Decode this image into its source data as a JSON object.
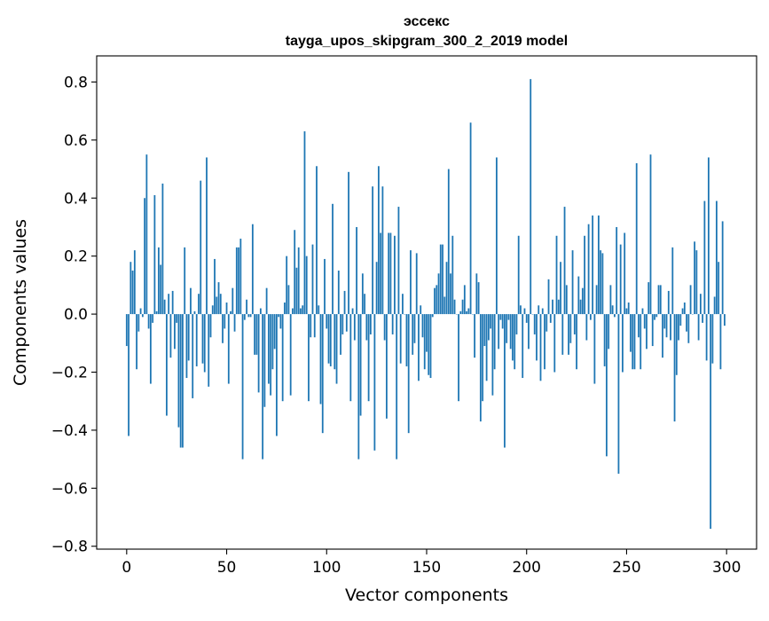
{
  "chart_data": {
    "type": "bar",
    "title": "эссекс",
    "subtitle": "tayga_upos_skipgram_300_2_2019 model",
    "xlabel": "Vector components",
    "ylabel": "Components values",
    "xlim": [
      -15,
      315
    ],
    "ylim": [
      -0.81,
      0.89
    ],
    "xticks": [
      0,
      50,
      100,
      150,
      200,
      250,
      300
    ],
    "yticks": [
      -0.8,
      -0.6,
      -0.4,
      -0.2,
      0.0,
      0.2,
      0.4,
      0.6,
      0.8
    ],
    "ytick_labels": [
      "−0.8",
      "−0.6",
      "−0.4",
      "−0.2",
      "0.0",
      "0.2",
      "0.4",
      "0.6",
      "0.8"
    ],
    "grid": false,
    "bar_color": "#1f77b4",
    "values": [
      -0.11,
      -0.42,
      0.18,
      0.15,
      0.22,
      -0.19,
      -0.06,
      0.02,
      -0.01,
      0.4,
      0.55,
      -0.05,
      -0.24,
      -0.03,
      0.41,
      0.01,
      0.23,
      0.17,
      0.45,
      0.05,
      -0.35,
      0.07,
      -0.15,
      0.08,
      -0.12,
      -0.03,
      -0.39,
      -0.46,
      -0.46,
      0.23,
      -0.22,
      -0.16,
      0.09,
      -0.29,
      0.01,
      -0.18,
      0.07,
      0.46,
      -0.17,
      -0.2,
      0.54,
      -0.25,
      -0.08,
      0.03,
      0.19,
      0.06,
      0.11,
      0.07,
      -0.1,
      -0.05,
      0.04,
      -0.24,
      0.01,
      0.09,
      -0.06,
      0.23,
      0.23,
      0.26,
      -0.5,
      -0.02,
      0.05,
      -0.01,
      -0.01,
      0.31,
      -0.14,
      -0.14,
      -0.27,
      0.02,
      -0.5,
      -0.32,
      0.09,
      -0.24,
      -0.28,
      -0.19,
      -0.12,
      -0.42,
      -0.01,
      -0.05,
      -0.3,
      0.04,
      0.2,
      0.1,
      -0.28,
      0.02,
      0.29,
      0.16,
      0.23,
      0.02,
      0.03,
      0.63,
      0.2,
      -0.3,
      -0.08,
      0.24,
      -0.08,
      0.51,
      0.03,
      -0.31,
      -0.41,
      0.19,
      -0.05,
      -0.17,
      -0.18,
      0.38,
      -0.19,
      -0.24,
      0.15,
      -0.14,
      -0.07,
      0.08,
      -0.06,
      0.49,
      -0.3,
      0.02,
      -0.09,
      0.3,
      -0.5,
      -0.35,
      0.14,
      0.07,
      -0.09,
      -0.3,
      -0.07,
      0.44,
      -0.47,
      0.18,
      0.51,
      0.28,
      0.44,
      -0.09,
      -0.36,
      0.28,
      0.28,
      -0.07,
      0.27,
      -0.5,
      0.37,
      -0.17,
      0.07,
      0.0,
      -0.18,
      -0.41,
      0.22,
      -0.14,
      -0.1,
      0.21,
      -0.23,
      0.03,
      -0.08,
      -0.19,
      -0.13,
      -0.21,
      -0.22,
      -0.01,
      0.09,
      0.1,
      0.14,
      0.24,
      0.24,
      0.06,
      0.18,
      0.5,
      0.14,
      0.27,
      0.05,
      0.0,
      -0.3,
      0.01,
      0.05,
      0.1,
      0.01,
      0.02,
      0.66,
      0.0,
      -0.15,
      0.14,
      0.11,
      -0.37,
      -0.3,
      -0.11,
      -0.23,
      -0.09,
      -0.05,
      -0.28,
      -0.19,
      0.54,
      -0.12,
      -0.02,
      -0.05,
      -0.46,
      -0.1,
      -0.02,
      -0.12,
      -0.16,
      -0.19,
      -0.07,
      0.27,
      0.03,
      -0.22,
      0.02,
      -0.03,
      -0.12,
      0.81,
      0.0,
      -0.07,
      -0.16,
      0.03,
      -0.23,
      0.02,
      -0.19,
      -0.06,
      0.12,
      -0.03,
      0.05,
      -0.2,
      0.27,
      0.05,
      0.18,
      -0.14,
      0.37,
      0.1,
      -0.14,
      -0.1,
      0.22,
      -0.07,
      -0.19,
      0.13,
      0.05,
      0.09,
      0.27,
      -0.09,
      0.31,
      -0.02,
      0.34,
      -0.24,
      0.1,
      0.34,
      0.22,
      0.21,
      -0.18,
      -0.49,
      -0.12,
      0.1,
      0.03,
      -0.01,
      0.3,
      -0.55,
      0.24,
      -0.2,
      0.28,
      0.02,
      0.04,
      -0.13,
      -0.19,
      -0.19,
      0.52,
      -0.08,
      -0.19,
      0.02,
      -0.05,
      -0.12,
      0.11,
      0.55,
      -0.11,
      -0.02,
      -0.01,
      0.1,
      0.1,
      -0.15,
      -0.05,
      -0.08,
      0.08,
      -0.09,
      0.23,
      -0.37,
      -0.21,
      -0.09,
      -0.04,
      0.02,
      0.04,
      -0.06,
      -0.1,
      0.1,
      0.0,
      0.25,
      0.22,
      -0.09,
      0.07,
      -0.03,
      0.39,
      -0.16,
      0.54,
      -0.74,
      -0.17,
      0.06,
      0.39,
      0.18,
      -0.19,
      0.32,
      -0.04
    ]
  }
}
